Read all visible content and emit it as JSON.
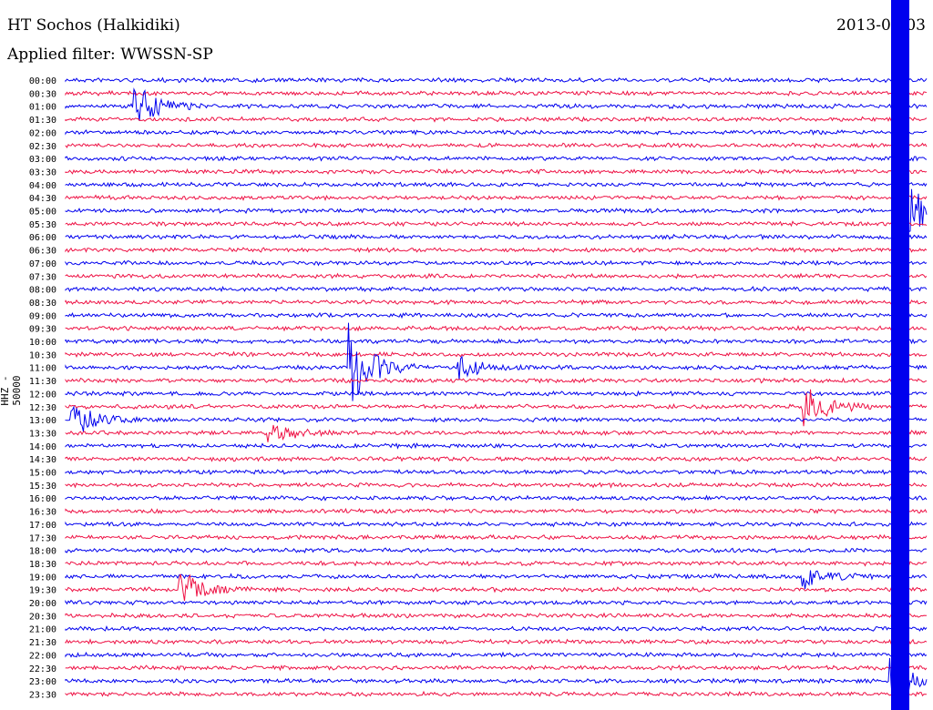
{
  "header": {
    "station": "HT Sochos (Halkidiki)",
    "date": "2013-07-03",
    "filter": "Applied filter: WWSSN-SP"
  },
  "chart_data": {
    "type": "line",
    "title": "HT Sochos (Halkidiki)",
    "ylabel": "HHZ - 50000",
    "row_labels": [
      "00:00",
      "00:30",
      "01:00",
      "01:30",
      "02:00",
      "02:30",
      "03:00",
      "03:30",
      "04:00",
      "04:30",
      "05:00",
      "05:30",
      "06:00",
      "06:30",
      "07:00",
      "07:30",
      "08:00",
      "08:30",
      "09:00",
      "09:30",
      "10:00",
      "10:30",
      "11:00",
      "11:30",
      "12:00",
      "12:30",
      "13:00",
      "13:30",
      "14:00",
      "14:30",
      "15:00",
      "15:30",
      "16:00",
      "16:30",
      "17:00",
      "17:30",
      "18:00",
      "18:30",
      "19:00",
      "19:30",
      "20:00",
      "20:30",
      "21:00",
      "21:30",
      "22:00",
      "22:30",
      "23:00",
      "23:30"
    ],
    "colors": {
      "even": "#0000ee",
      "odd": "#ee1144"
    },
    "row_minutes": 30,
    "events": [
      {
        "row": 2,
        "minute": 2.5,
        "amplitude": 1.9
      },
      {
        "row": 22,
        "minute": 10.5,
        "amplitude": 3.5
      },
      {
        "row": 22,
        "minute": 14.5,
        "amplitude": 1.2
      },
      {
        "row": 26,
        "minute": 0.2,
        "amplitude": 1.6
      },
      {
        "row": 27,
        "minute": 7.5,
        "amplitude": 1.0
      },
      {
        "row": 25,
        "minute": 27.3,
        "amplitude": 2.0
      },
      {
        "row": 38,
        "minute": 27.3,
        "amplitude": 1.1
      },
      {
        "row": 39,
        "minute": 4.2,
        "amplitude": 1.6
      },
      {
        "row": 46,
        "minute": 30.5,
        "amplitude": 1.9
      },
      {
        "row": 10,
        "minute": 31.3,
        "amplitude": 2.2
      }
    ],
    "saturated_band": {
      "start_row": 0,
      "end_row": 47,
      "minute": 31.2
    }
  }
}
